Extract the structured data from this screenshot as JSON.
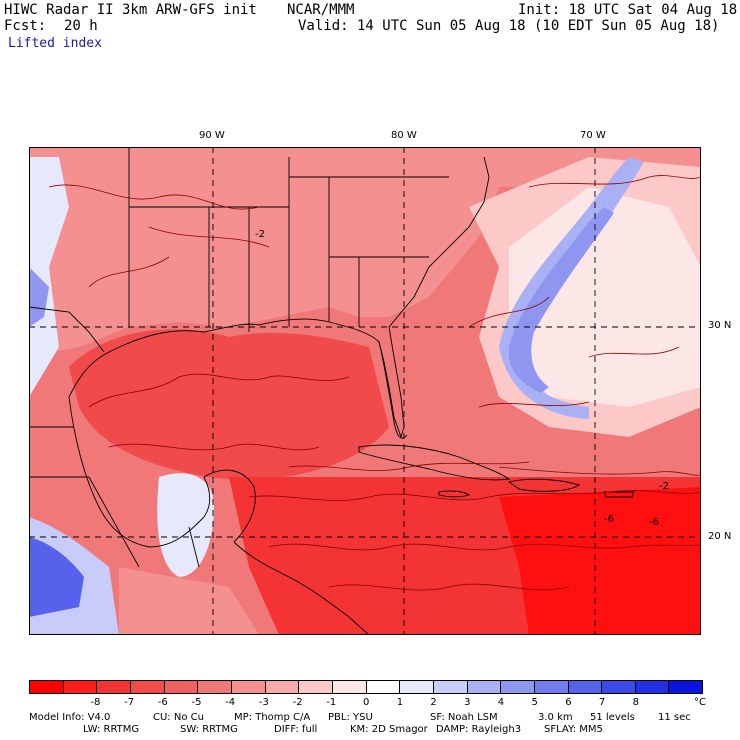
{
  "header": {
    "title": "HIWC Radar II 3km ARW-GFS init",
    "org": "NCAR/MMM",
    "init": "Init: 18 UTC Sat 04 Aug 18",
    "fcst_label": "Fcst:",
    "fcst_value": "20 h",
    "valid": "Valid: 14 UTC Sun 05 Aug 18 (10 EDT Sun 05 Aug 18)",
    "field": "Lifted index"
  },
  "map": {
    "lon_labels": [
      "90 W",
      "80 W",
      "70 W"
    ],
    "lat_labels": [
      "30 N",
      "20 N"
    ],
    "contour_labels": [
      "-2",
      "-6",
      "-2",
      "-6"
    ],
    "colors": {
      "deep_red": "#ff1010",
      "red": "#f24848",
      "light_red": "#f58a8a",
      "pale_red": "#fbc8c8",
      "pale_blue": "#d8dcf8",
      "blue": "#7f8cf0",
      "deep_blue": "#3a47d8",
      "contour": "#8b0000",
      "border": "#000000"
    }
  },
  "colorbar": {
    "colors": [
      "#ff0000",
      "#ff1c1c",
      "#f43434",
      "#f04a4a",
      "#f06060",
      "#f07878",
      "#f49090",
      "#f8aaaa",
      "#fcc8c8",
      "#fde6e6",
      "#ffffff",
      "#e6e8fc",
      "#c8ccf8",
      "#aab0f4",
      "#8e96f0",
      "#727cee",
      "#5662ec",
      "#3e4ae8",
      "#2230e4",
      "#0a14e0"
    ],
    "labels": [
      "-8",
      "-7",
      "-6",
      "-5",
      "-4",
      "-3",
      "-2",
      "-1",
      "0",
      "1",
      "2",
      "3",
      "4",
      "5",
      "6",
      "7",
      "8"
    ],
    "unit": "°C"
  },
  "model_info": {
    "line1": [
      "Model Info: V4.0",
      "CU: No Cu",
      "MP: Thomp C/A",
      "PBL: YSU",
      "SF: Noah LSM",
      "3.0 km",
      "51 levels",
      "11 sec"
    ],
    "line2": [
      "LW: RRTMG",
      "SW: RRTMG",
      "DIFF: full",
      "KM: 2D Smagor",
      "DAMP: Rayleigh3",
      "SFLAY: MM5"
    ]
  }
}
